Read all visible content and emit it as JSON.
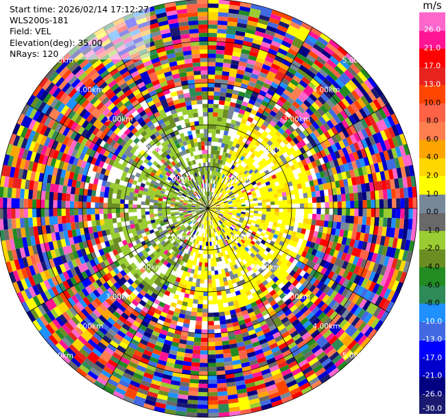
{
  "header": {
    "start_time": "Start time: 2026/02/14 17:12:27",
    "instrument": "WLS200s-181",
    "field": "Field: VEL",
    "elevation": "Elevation(deg): 35.00",
    "nrays": "NRays: 120"
  },
  "scan": {
    "field": "VEL",
    "units": "m/s",
    "elevation_deg": 35.0,
    "nrays": 120,
    "max_range_km": 5.0
  },
  "range_rings_km": [
    1,
    2,
    3,
    4,
    5
  ],
  "range_rings": [
    {
      "label": "1.00km"
    },
    {
      "label": "2.00km"
    },
    {
      "label": "3.00km"
    },
    {
      "label": "4.00km"
    },
    {
      "label": "5.00km"
    }
  ],
  "colorbar": {
    "title": "m/s",
    "ticks": [
      "26.0",
      "21.0",
      "17.0",
      "13.0",
      "10.0",
      "8.0",
      "6.0",
      "4.0",
      "2.0",
      "1.0",
      "0.0",
      "-1.0",
      "-2.0",
      "-4.0",
      "-6.0",
      "-8.0",
      "-10.0",
      "-13.0",
      "-17.0",
      "-21.0",
      "-26.0",
      "-30.0"
    ],
    "segments": [
      {
        "color": "#ff66cc"
      },
      {
        "color": "#ff1493"
      },
      {
        "color": "#ff0000"
      },
      {
        "color": "#e8231f"
      },
      {
        "color": "#ff4500"
      },
      {
        "color": "#ff6347"
      },
      {
        "color": "#ff7f50"
      },
      {
        "color": "#ffa500"
      },
      {
        "color": "#ffd700"
      },
      {
        "color": "#ffff00"
      },
      {
        "color": "#778899"
      },
      {
        "color": "#696969"
      },
      {
        "color": "#9acd32"
      },
      {
        "color": "#6b8e23"
      },
      {
        "color": "#228b22"
      },
      {
        "color": "#2e8b57"
      },
      {
        "color": "#1e90ff"
      },
      {
        "color": "#4169e1"
      },
      {
        "color": "#0000ff"
      },
      {
        "color": "#0000cd"
      },
      {
        "color": "#000080"
      },
      {
        "color": "#191970"
      }
    ]
  },
  "colors": {
    "background": "#ffffff",
    "rings": "#000000",
    "ring_labels": "#ffffff"
  }
}
